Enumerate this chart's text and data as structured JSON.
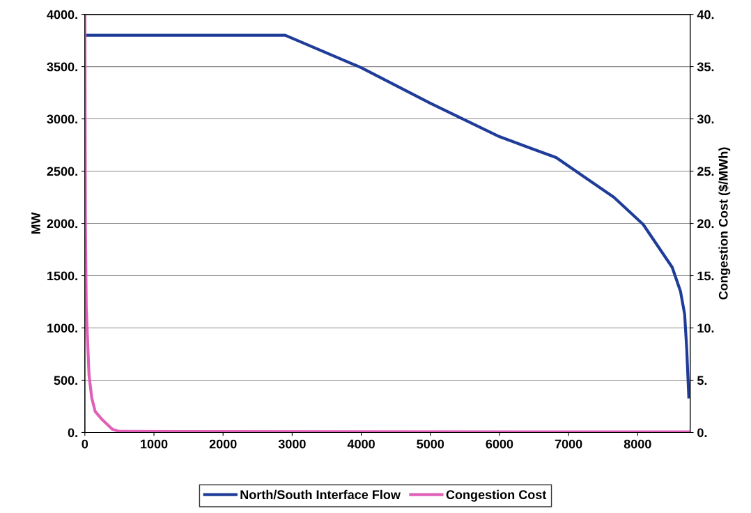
{
  "chart_data": {
    "type": "line",
    "ylabel": "MW",
    "y2label": "Congestion Cost ($/MWh)",
    "xlim": [
      0,
      8760
    ],
    "xticks": [
      0,
      1000,
      2000,
      3000,
      4000,
      5000,
      6000,
      7000,
      8000
    ],
    "ylim": [
      0,
      4000
    ],
    "yticks": [
      {
        "value": 0,
        "label": "0."
      },
      {
        "value": 500,
        "label": "500."
      },
      {
        "value": 1000,
        "label": "1000."
      },
      {
        "value": 1500,
        "label": "1500."
      },
      {
        "value": 2000,
        "label": "2000."
      },
      {
        "value": 2500,
        "label": "2500."
      },
      {
        "value": 3000,
        "label": "3000."
      },
      {
        "value": 3500,
        "label": "3500."
      },
      {
        "value": 4000,
        "label": "4000."
      }
    ],
    "y2lim": [
      0,
      40
    ],
    "y2ticks": [
      {
        "value": 0,
        "label": "0."
      },
      {
        "value": 5,
        "label": "5."
      },
      {
        "value": 10,
        "label": "10."
      },
      {
        "value": 15,
        "label": "15."
      },
      {
        "value": 20,
        "label": "20."
      },
      {
        "value": 25,
        "label": "25."
      },
      {
        "value": 30,
        "label": "30."
      },
      {
        "value": 35,
        "label": "35."
      },
      {
        "value": 40,
        "label": "40."
      }
    ],
    "grid": "y",
    "legend": "bottom",
    "marker": "none",
    "line_style": "solid",
    "series": [
      {
        "name": "North/South Interface Flow",
        "color": "#1f3c99",
        "x": [
          0,
          2900,
          4000,
          5000,
          6000,
          6820,
          7656,
          8080,
          8500,
          8620,
          8680,
          8710,
          8740
        ],
        "values": [
          3800,
          3800,
          3490,
          3150,
          2830,
          2630,
          2250,
          1990,
          1580,
          1350,
          1130,
          800,
          340
        ]
      },
      {
        "name": "Congestion Cost",
        "color": "#e060b8",
        "axis": "y2",
        "x": [
          0,
          8,
          20,
          60,
          100,
          150,
          240,
          400,
          500,
          8760
        ],
        "values": [
          40,
          20,
          12,
          5.5,
          3.3,
          2.0,
          1.3,
          0.3,
          0.1,
          0.05
        ]
      }
    ]
  }
}
